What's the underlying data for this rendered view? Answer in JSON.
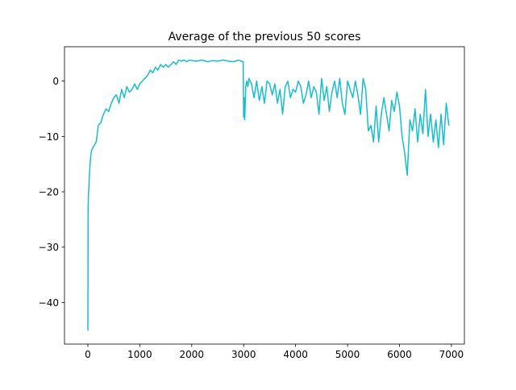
{
  "chart_data": {
    "type": "line",
    "title": "Average of the previous 50 scores",
    "xlabel": "",
    "ylabel": "",
    "xlim": [
      -450,
      7250
    ],
    "ylim": [
      -47.5,
      6.2
    ],
    "xticks": [
      0,
      1000,
      2000,
      3000,
      4000,
      5000,
      6000,
      7000
    ],
    "xtick_labels": [
      "0",
      "1000",
      "2000",
      "3000",
      "4000",
      "5000",
      "6000",
      "7000"
    ],
    "yticks": [
      -40,
      -30,
      -20,
      -10,
      0
    ],
    "ytick_labels": [
      "−40",
      "−30",
      "−20",
      "−10",
      "0"
    ],
    "grid": false,
    "legend": "none",
    "series": [
      {
        "color": "#17becf",
        "x": [
          0,
          5,
          10,
          20,
          30,
          50,
          70,
          100,
          130,
          160,
          200,
          250,
          300,
          350,
          400,
          450,
          500,
          550,
          600,
          650,
          700,
          750,
          800,
          850,
          900,
          950,
          1000,
          1050,
          1100,
          1150,
          1200,
          1250,
          1300,
          1350,
          1400,
          1450,
          1500,
          1550,
          1600,
          1650,
          1700,
          1750,
          1800,
          1850,
          1900,
          1950,
          2000,
          2100,
          2200,
          2300,
          2400,
          2500,
          2600,
          2700,
          2800,
          2900,
          2950,
          2990,
          3000,
          3010,
          3020,
          3040,
          3060,
          3080,
          3100,
          3150,
          3200,
          3250,
          3300,
          3350,
          3400,
          3450,
          3500,
          3550,
          3600,
          3650,
          3700,
          3750,
          3800,
          3850,
          3900,
          3950,
          4000,
          4050,
          4100,
          4150,
          4200,
          4250,
          4300,
          4350,
          4400,
          4450,
          4500,
          4550,
          4600,
          4650,
          4700,
          4750,
          4800,
          4850,
          4900,
          4950,
          5000,
          5050,
          5100,
          5150,
          5200,
          5250,
          5300,
          5350,
          5400,
          5450,
          5500,
          5550,
          5600,
          5650,
          5700,
          5750,
          5800,
          5850,
          5900,
          5950,
          6000,
          6050,
          6100,
          6150,
          6200,
          6250,
          6300,
          6350,
          6400,
          6450,
          6500,
          6550,
          6600,
          6650,
          6700,
          6750,
          6800,
          6850,
          6900,
          6950
        ],
        "values": [
          -45,
          -23,
          -21,
          -19,
          -17,
          -14,
          -12.5,
          -12,
          -11.5,
          -11,
          -8,
          -7.5,
          -6,
          -5,
          -5.5,
          -4,
          -3,
          -2.5,
          -4,
          -1.5,
          -3,
          -1,
          -2,
          -1.5,
          -0.5,
          -1.5,
          -0.5,
          0,
          0.5,
          1,
          2,
          1.5,
          2.5,
          2,
          3,
          2.5,
          3,
          2.5,
          3,
          3.5,
          3,
          3.8,
          3.6,
          3.8,
          3.5,
          3.8,
          3.7,
          3.6,
          3.8,
          3.5,
          3.7,
          3.6,
          3.8,
          3.6,
          3.5,
          3.8,
          3.6,
          3.5,
          -6.5,
          -3,
          -7,
          -1,
          0,
          -1,
          0.5,
          -0.5,
          -3,
          0,
          -3.5,
          -1,
          -4,
          0,
          -0.5,
          -2.5,
          -0.5,
          -4,
          -1.5,
          -6,
          -1,
          0,
          -3,
          -1.5,
          -2,
          0,
          -1,
          -4,
          -2.5,
          0,
          -3,
          -1,
          -2,
          -6,
          0.5,
          -3.5,
          -1,
          -5.5,
          -2,
          0,
          -3,
          0.5,
          -4,
          -6,
          0,
          -1.5,
          -3,
          0,
          -2.5,
          -6,
          0.5,
          -1.5,
          -9,
          -8,
          -11,
          -4.5,
          -11,
          -6,
          -3,
          -6,
          -9,
          -3.5,
          -5.5,
          -2,
          -4.5,
          -10,
          -13,
          -17,
          -7,
          -9,
          -5,
          -11,
          -6,
          -9.5,
          -1.5,
          -10,
          -6,
          -11,
          -7,
          -12,
          -6,
          -11.5,
          -4,
          -8
        ]
      }
    ]
  }
}
